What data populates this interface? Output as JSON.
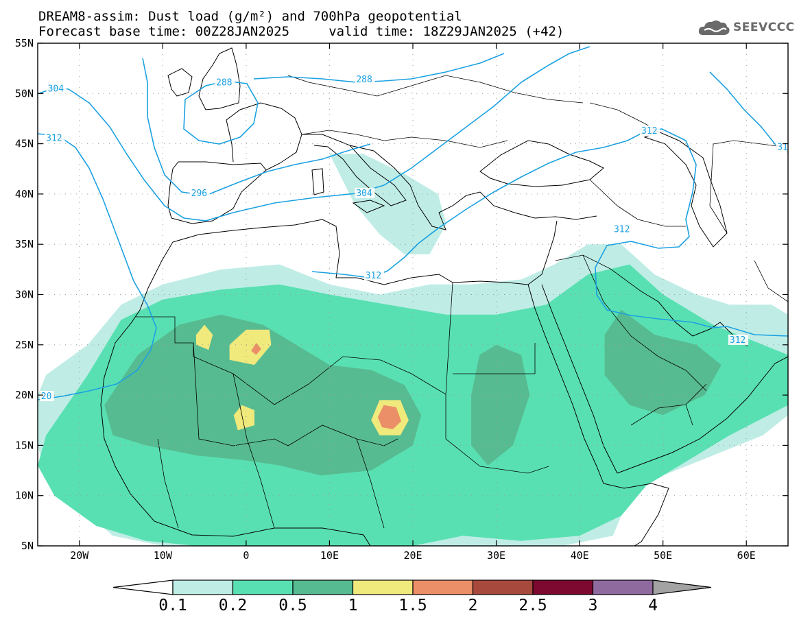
{
  "header": {
    "line1": "DREAM8-assim: Dust load (g/m²) and 700hPa geopotential",
    "line2": "Forecast base time: 00Z28JAN2025     valid time: 18Z29JAN2025 (+42)"
  },
  "logo": {
    "text": "SEEVCCC",
    "icon": "cloud-icon"
  },
  "map": {
    "lon_range": [
      -25,
      65
    ],
    "lat_range": [
      5,
      55
    ],
    "lon_ticks": [
      {
        "value": -20,
        "label": "20W"
      },
      {
        "value": -10,
        "label": "10W"
      },
      {
        "value": 0,
        "label": "0"
      },
      {
        "value": 10,
        "label": "10E"
      },
      {
        "value": 20,
        "label": "20E"
      },
      {
        "value": 30,
        "label": "30E"
      },
      {
        "value": 40,
        "label": "40E"
      },
      {
        "value": 50,
        "label": "50E"
      },
      {
        "value": 60,
        "label": "60E"
      }
    ],
    "lat_ticks": [
      {
        "value": 55,
        "label": "55N"
      },
      {
        "value": 50,
        "label": "50N"
      },
      {
        "value": 45,
        "label": "45N"
      },
      {
        "value": 40,
        "label": "40N"
      },
      {
        "value": 35,
        "label": "35N"
      },
      {
        "value": 30,
        "label": "30N"
      },
      {
        "value": 25,
        "label": "25N"
      },
      {
        "value": 20,
        "label": "20N"
      },
      {
        "value": 15,
        "label": "15N"
      },
      {
        "value": 10,
        "label": "10N"
      },
      {
        "value": 5,
        "label": "5N"
      }
    ],
    "grid": true,
    "contour_labels": [
      {
        "text": "304",
        "lon": -23.8,
        "lat": 50.4
      },
      {
        "text": "312",
        "lon": -24.0,
        "lat": 45.5
      },
      {
        "text": "288",
        "lon": -3.6,
        "lat": 51.0
      },
      {
        "text": "288",
        "lon": 13.2,
        "lat": 51.3
      },
      {
        "text": "296",
        "lon": -6.6,
        "lat": 40.0
      },
      {
        "text": "304",
        "lon": 13.2,
        "lat": 40.0
      },
      {
        "text": "312",
        "lon": 14.3,
        "lat": 31.8
      },
      {
        "text": "312",
        "lon": 47.4,
        "lat": 46.2
      },
      {
        "text": "312",
        "lon": 44.1,
        "lat": 36.4
      },
      {
        "text": "312",
        "lon": 58.0,
        "lat": 25.4
      },
      {
        "text": "20",
        "lon": -24.6,
        "lat": 19.8
      },
      {
        "text": "31",
        "lon": 63.7,
        "lat": 44.6
      }
    ],
    "contour_color": "#1ba1e2",
    "dust_regions": [
      {
        "level": 0.1,
        "lonlat": [
          [
            -24,
            22
          ],
          [
            -19,
            25
          ],
          [
            -15,
            29
          ],
          [
            -10,
            31
          ],
          [
            -3,
            32.5
          ],
          [
            4,
            33
          ],
          [
            10,
            31
          ],
          [
            16,
            30
          ],
          [
            22,
            31
          ],
          [
            27,
            31
          ],
          [
            33,
            31.5
          ],
          [
            37,
            33
          ],
          [
            41,
            35
          ],
          [
            45,
            35
          ],
          [
            49,
            32
          ],
          [
            54,
            30
          ],
          [
            58,
            29
          ],
          [
            63,
            29
          ],
          [
            65,
            28
          ],
          [
            65,
            18
          ],
          [
            62,
            16
          ],
          [
            56,
            14
          ],
          [
            50,
            12
          ],
          [
            46,
            10
          ],
          [
            44,
            6
          ],
          [
            38,
            5
          ],
          [
            30,
            5
          ],
          [
            24,
            5
          ],
          [
            19,
            5
          ],
          [
            10,
            5
          ],
          [
            -4,
            5
          ],
          [
            -10,
            5
          ],
          [
            -16,
            6
          ],
          [
            -20,
            9
          ],
          [
            -24,
            12
          ],
          [
            -25,
            15
          ],
          [
            -25,
            20
          ]
        ]
      },
      {
        "level": 0.1,
        "lonlat": [
          [
            10,
            44
          ],
          [
            13,
            39
          ],
          [
            16,
            36
          ],
          [
            19,
            34
          ],
          [
            22,
            34
          ],
          [
            24,
            37
          ],
          [
            23,
            40
          ],
          [
            19,
            42
          ],
          [
            14,
            44
          ]
        ]
      },
      {
        "level": 0.2,
        "lonlat": [
          [
            -24,
            16
          ],
          [
            -19,
            22
          ],
          [
            -15,
            27.5
          ],
          [
            -10,
            29.5
          ],
          [
            -3,
            30.5
          ],
          [
            4,
            31
          ],
          [
            10,
            30
          ],
          [
            17,
            29
          ],
          [
            24,
            28
          ],
          [
            30,
            28
          ],
          [
            36,
            29
          ],
          [
            41,
            32
          ],
          [
            46,
            33
          ],
          [
            50,
            30
          ],
          [
            56,
            27
          ],
          [
            62,
            25
          ],
          [
            65,
            24
          ],
          [
            65,
            19
          ],
          [
            58,
            16
          ],
          [
            52,
            13
          ],
          [
            48,
            11
          ],
          [
            45,
            8
          ],
          [
            40,
            6
          ],
          [
            33,
            5.5
          ],
          [
            26,
            6
          ],
          [
            20,
            5
          ],
          [
            12,
            5
          ],
          [
            3,
            5
          ],
          [
            -6,
            5
          ],
          [
            -12,
            5.5
          ],
          [
            -18,
            7
          ],
          [
            -23,
            10
          ],
          [
            -25,
            13
          ]
        ]
      },
      {
        "level": 0.5,
        "lonlat": [
          [
            -17,
            19
          ],
          [
            -13,
            24
          ],
          [
            -8,
            27
          ],
          [
            -3,
            28
          ],
          [
            2,
            27
          ],
          [
            6,
            25
          ],
          [
            10,
            23
          ],
          [
            15,
            22.5
          ],
          [
            19,
            21
          ],
          [
            21,
            18
          ],
          [
            20,
            15
          ],
          [
            15,
            12.5
          ],
          [
            9,
            12
          ],
          [
            4,
            13
          ],
          [
            0,
            13.5
          ],
          [
            -6,
            14
          ],
          [
            -12,
            15
          ],
          [
            -16,
            16
          ]
        ]
      },
      {
        "level": 0.5,
        "lonlat": [
          [
            45,
            28.5
          ],
          [
            49,
            26
          ],
          [
            54,
            25
          ],
          [
            57,
            23
          ],
          [
            55,
            20
          ],
          [
            50,
            18
          ],
          [
            46,
            19
          ],
          [
            43,
            22
          ],
          [
            43,
            26
          ]
        ]
      },
      {
        "level": 0.5,
        "lonlat": [
          [
            30,
            25
          ],
          [
            33,
            24
          ],
          [
            34,
            20
          ],
          [
            32,
            15
          ],
          [
            29,
            13
          ],
          [
            27,
            15
          ],
          [
            27,
            20
          ],
          [
            28,
            24
          ]
        ]
      },
      {
        "level": 1.0,
        "lonlat": [
          [
            -2,
            25
          ],
          [
            0,
            26.5
          ],
          [
            2.8,
            26.5
          ],
          [
            3,
            25
          ],
          [
            1,
            23
          ],
          [
            -2,
            23.5
          ]
        ]
      },
      {
        "level": 1.0,
        "lonlat": [
          [
            -6,
            26
          ],
          [
            -5,
            27
          ],
          [
            -4,
            26
          ],
          [
            -4.5,
            24.5
          ],
          [
            -6,
            25
          ]
        ]
      },
      {
        "level": 1.0,
        "lonlat": [
          [
            -1.5,
            18
          ],
          [
            -0.5,
            19
          ],
          [
            1,
            18.5
          ],
          [
            1,
            17
          ],
          [
            -1,
            16.5
          ]
        ]
      },
      {
        "level": 1.0,
        "lonlat": [
          [
            15,
            17.5
          ],
          [
            16,
            19.5
          ],
          [
            18.5,
            19.5
          ],
          [
            19.5,
            17.5
          ],
          [
            18.5,
            16
          ],
          [
            16,
            16
          ]
        ]
      },
      {
        "level": 1.5,
        "lonlat": [
          [
            15.8,
            17.8
          ],
          [
            16.5,
            19
          ],
          [
            18,
            18.8
          ],
          [
            18.6,
            17.4
          ],
          [
            17.6,
            16.6
          ],
          [
            16.3,
            16.8
          ]
        ]
      },
      {
        "level": 1.5,
        "lonlat": [
          [
            0.6,
            24.4
          ],
          [
            1.2,
            25.2
          ],
          [
            1.8,
            24.6
          ],
          [
            1.2,
            24
          ]
        ]
      }
    ]
  },
  "legend": {
    "colors": [
      "#ffffff",
      "#bfede6",
      "#59e0b2",
      "#57bb91",
      "#f0e97c",
      "#ea8f67",
      "#a8493d",
      "#7d0930",
      "#8f6a9f",
      "#a3a3a3"
    ],
    "labels": [
      "0.1",
      "0.2",
      "0.5",
      "1",
      "1.5",
      "2",
      "2.5",
      "3",
      "4"
    ]
  }
}
